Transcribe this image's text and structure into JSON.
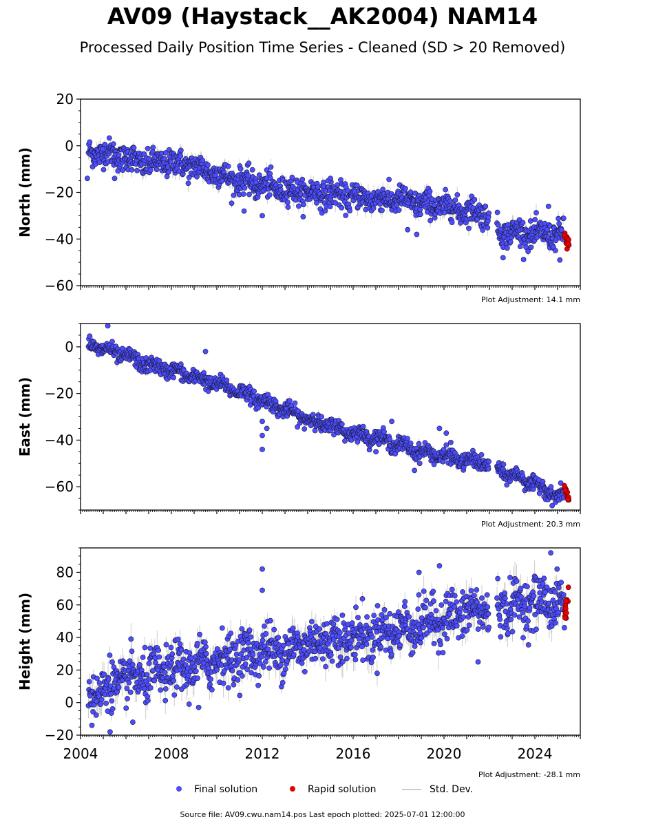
{
  "title": "AV09 (Haystack__AK2004) NAM14",
  "subtitle": "Processed Daily Position Time Series - Cleaned (SD > 20 Removed)",
  "colors": {
    "final": "#4d4dff",
    "final_edge": "#1a1a3a",
    "rapid": "#e60000",
    "std_dev": "#cccccc"
  },
  "legend": {
    "final": "Final solution",
    "rapid": "Rapid solution",
    "std": "Std. Dev."
  },
  "source_text": "Source file: AV09.cwu.nam14.pos  Last epoch plotted: 2025-07-01 12:00:00",
  "chart_data": [
    {
      "type": "scatter",
      "ylabel": "North (mm)",
      "xlim": [
        2004.0,
        2026.0
      ],
      "ylim": [
        -60,
        20
      ],
      "yticks": [
        20,
        0,
        -20,
        -40,
        -60
      ],
      "adjustment": "Plot Adjustment: 14.1 mm",
      "series": [
        {
          "name": "Final solution",
          "x": [
            2004.4,
            2005.0,
            2006.0,
            2007.0,
            2008.0,
            2009.0,
            2010.0,
            2011.0,
            2012.0,
            2013.0,
            2014.0,
            2015.0,
            2016.0,
            2017.0,
            2018.0,
            2019.0,
            2020.0,
            2021.0,
            2021.9,
            2022.4,
            2023.0,
            2024.0,
            2025.0
          ],
          "y": [
            -3,
            -3,
            -5,
            -8,
            -7,
            -9,
            -12,
            -15,
            -17,
            -19,
            -20,
            -21,
            -22,
            -23,
            -23,
            -25,
            -26,
            -28,
            -29,
            -37,
            -37,
            -38,
            -38
          ],
          "scatter_sd": 2.8
        },
        {
          "name": "Rapid solution",
          "x": [
            2025.3,
            2025.4,
            2025.5
          ],
          "y": [
            -38,
            -40,
            -41
          ]
        }
      ],
      "outliers": {
        "x": [
          2004.3,
          2005.5,
          2011.2,
          2012.0,
          2014.9,
          2015.0,
          2018.4,
          2018.8,
          2022.6,
          2024.6,
          2025.1
        ],
        "y": [
          -14,
          -14,
          -28,
          -30,
          -15,
          -14,
          -36,
          -38,
          -48,
          -26,
          -49
        ]
      }
    },
    {
      "type": "scatter",
      "ylabel": "East (mm)",
      "xlim": [
        2004.0,
        2026.0
      ],
      "ylim": [
        -70,
        10
      ],
      "yticks": [
        0,
        -20,
        -40,
        -60
      ],
      "adjustment": "Plot Adjustment: 20.3 mm",
      "series": [
        {
          "name": "Final solution",
          "x": [
            2004.4,
            2005.0,
            2006.0,
            2007.0,
            2008.0,
            2009.0,
            2010.0,
            2011.0,
            2012.0,
            2013.0,
            2014.0,
            2015.0,
            2016.0,
            2017.0,
            2018.0,
            2019.0,
            2020.0,
            2021.0,
            2021.9,
            2022.4,
            2023.0,
            2024.0,
            2025.0
          ],
          "y": [
            1,
            -1,
            -4,
            -8,
            -10,
            -13,
            -16,
            -19,
            -23,
            -27,
            -31,
            -34,
            -37,
            -39,
            -42,
            -45,
            -47,
            -49,
            -50,
            -53,
            -55,
            -59,
            -64
          ],
          "scatter_sd": 1.6
        },
        {
          "name": "Rapid solution",
          "x": [
            2025.3,
            2025.4,
            2025.5
          ],
          "y": [
            -61,
            -63,
            -65
          ]
        }
      ],
      "outliers": {
        "x": [
          2005.2,
          2009.5,
          2012.0,
          2012.0,
          2012.0,
          2012.2,
          2017.7,
          2018.7,
          2019.8,
          2020.1,
          2020.3
        ],
        "y": [
          9,
          -2,
          -32,
          -38,
          -44,
          -35,
          -32,
          -53,
          -35,
          -37,
          -41
        ]
      }
    },
    {
      "type": "scatter",
      "ylabel": "Height (mm)",
      "xlim": [
        2004.0,
        2026.0
      ],
      "ylim": [
        -20,
        95
      ],
      "yticks": [
        80,
        60,
        40,
        20,
        0,
        -20
      ],
      "xticks": [
        2004,
        2008,
        2012,
        2016,
        2020,
        2024
      ],
      "adjustment": "Plot Adjustment: -28.1 mm",
      "series": [
        {
          "name": "Final solution",
          "x": [
            2004.4,
            2005.0,
            2006.0,
            2007.0,
            2008.0,
            2009.0,
            2010.0,
            2011.0,
            2012.0,
            2013.0,
            2014.0,
            2015.0,
            2016.0,
            2017.0,
            2018.0,
            2019.0,
            2020.0,
            2021.0,
            2021.9,
            2022.4,
            2023.0,
            2024.0,
            2025.0
          ],
          "y": [
            5,
            8,
            14,
            16,
            20,
            22,
            26,
            29,
            32,
            32,
            36,
            39,
            40,
            42,
            45,
            48,
            52,
            55,
            58,
            58,
            59,
            62,
            62
          ],
          "scatter_sd": 7.5
        },
        {
          "name": "Rapid solution",
          "x": [
            2025.3,
            2025.4,
            2025.5
          ],
          "y": [
            55,
            60,
            65
          ]
        }
      ],
      "outliers": {
        "x": [
          2012.0,
          2012.0,
          2018.9,
          2019.8,
          2021.5,
          2024.7,
          2025.3,
          2004.5,
          2005.3,
          2006.3,
          2009.2
        ],
        "y": [
          82,
          69,
          80,
          84,
          25,
          92,
          46,
          -14,
          -18,
          -12,
          -3
        ]
      }
    }
  ]
}
